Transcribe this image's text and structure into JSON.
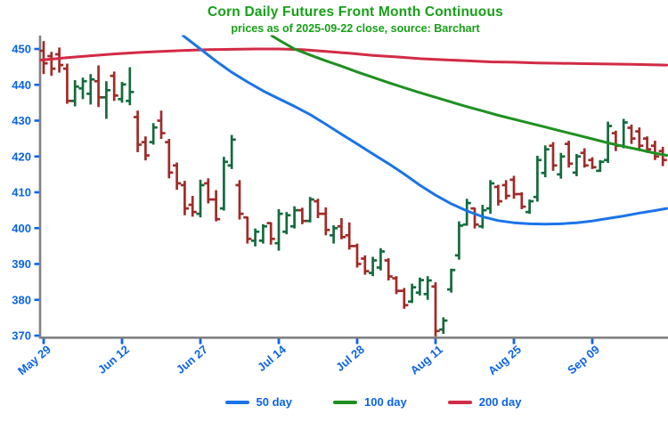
{
  "header": {
    "title": "Corn Daily Futures Front Month Continuous",
    "subtitle": "prices as of 2025-09-22 close, source: Barchart"
  },
  "colors": {
    "title_green": "#17A017",
    "axis_label_blue": "#0B64E8",
    "spine_gray": "#808080",
    "ma50_blue": "#1B74E8",
    "ma100_green": "#1F9020",
    "ma200_red": "#D22B45",
    "bar_up_green": "#146B3E",
    "bar_down_red": "#A02B28"
  },
  "legend": {
    "items": [
      {
        "label": "50 day",
        "color": "#1B74E8"
      },
      {
        "label": "100 day",
        "color": "#1F9020"
      },
      {
        "label": "200 day",
        "color": "#D22B45"
      }
    ]
  },
  "axes": {
    "y_ticks": [
      450,
      440,
      430,
      420,
      410,
      400,
      390,
      380,
      370
    ],
    "x_ticks": [
      {
        "label": "May 29",
        "index": 0
      },
      {
        "label": "Jun 12",
        "index": 10
      },
      {
        "label": "Jun 27",
        "index": 20
      },
      {
        "label": "Jul 14",
        "index": 30
      },
      {
        "label": "Jul 28",
        "index": 40
      },
      {
        "label": "Aug 11",
        "index": 50
      },
      {
        "label": "Aug 25",
        "index": 60
      },
      {
        "label": "Sep 09",
        "index": 70
      }
    ]
  },
  "chart_data": {
    "type": "ohlc-bar+line",
    "title": "Corn Daily Futures Front Month Continuous",
    "subtitle": "prices as of 2025-09-22 close, source: Barchart",
    "xlabel": "",
    "ylabel": "",
    "ylim": [
      368,
      454
    ],
    "grid": false,
    "legend_position": "bottom",
    "x_unit": "trading-day index, 2025-05-29 through 2025-09-22",
    "bars_ohlc": [
      [
        449.5,
        452.2,
        443.0,
        446.0
      ],
      [
        448.0,
        449.2,
        442.5,
        444.5
      ],
      [
        448.5,
        450.4,
        443.4,
        445.5
      ],
      [
        444.5,
        445.9,
        434.7,
        435.5
      ],
      [
        435.5,
        441.3,
        434.0,
        439.5
      ],
      [
        439.0,
        442.0,
        436.0,
        441.0
      ],
      [
        437.5,
        443.0,
        434.5,
        441.5
      ],
      [
        441.0,
        445.4,
        433.8,
        436.5
      ],
      [
        436.5,
        441.0,
        430.5,
        438.5
      ],
      [
        442.5,
        443.7,
        435.5,
        437.0
      ],
      [
        436.0,
        440.8,
        435.0,
        440.1
      ],
      [
        435.5,
        444.9,
        434.3,
        438.0
      ],
      [
        431.0,
        432.8,
        421.2,
        423.3
      ],
      [
        424.0,
        425.6,
        418.9,
        420.3
      ],
      [
        424.0,
        429.3,
        423.3,
        428.1
      ],
      [
        430.0,
        432.8,
        424.9,
        426.5
      ],
      [
        424.0,
        424.9,
        413.9,
        415.5
      ],
      [
        417.5,
        418.3,
        410.7,
        412.5
      ],
      [
        412.0,
        413.2,
        403.6,
        405.5
      ],
      [
        406.5,
        409.0,
        403.2,
        404.5
      ],
      [
        404.0,
        413.5,
        403.0,
        412.0
      ],
      [
        412.5,
        413.9,
        406.9,
        408.0
      ],
      [
        408.0,
        410.6,
        401.9,
        402.5
      ],
      [
        405.5,
        419.9,
        404.9,
        418.5
      ],
      [
        417.5,
        426.0,
        416.5,
        424.7
      ],
      [
        412.0,
        413.4,
        402.4,
        404.0
      ],
      [
        403.0,
        403.2,
        395.7,
        397.0
      ],
      [
        396.5,
        399.9,
        394.9,
        399.0
      ],
      [
        396.5,
        401.1,
        395.7,
        400.5
      ],
      [
        401.4,
        401.6,
        395.4,
        397.0
      ],
      [
        395.8,
        405.3,
        393.7,
        404.0
      ],
      [
        399.0,
        404.5,
        398.3,
        403.6
      ],
      [
        400.5,
        406.1,
        399.9,
        405.0
      ],
      [
        405.0,
        405.7,
        401.1,
        402.0
      ],
      [
        402.0,
        408.7,
        401.6,
        408.0
      ],
      [
        407.5,
        408.2,
        402.8,
        404.0
      ],
      [
        404.0,
        405.8,
        398.0,
        399.5
      ],
      [
        398.0,
        400.8,
        395.7,
        400.0
      ],
      [
        400.5,
        402.8,
        396.9,
        397.5
      ],
      [
        398.0,
        401.6,
        394.0,
        395.0
      ],
      [
        395.0,
        395.7,
        389.0,
        390.0
      ],
      [
        391.5,
        392.4,
        387.0,
        388.0
      ],
      [
        387.5,
        392.0,
        386.6,
        391.0
      ],
      [
        389.0,
        394.4,
        388.2,
        393.5
      ],
      [
        391.0,
        391.6,
        385.4,
        386.5
      ],
      [
        386.0,
        386.6,
        381.6,
        382.5
      ],
      [
        382.5,
        383.3,
        377.5,
        378.5
      ],
      [
        379.5,
        384.5,
        379.1,
        383.5
      ],
      [
        382.0,
        386.2,
        381.2,
        385.5
      ],
      [
        381.6,
        386.6,
        380.0,
        385.4
      ],
      [
        383.7,
        384.9,
        369.8,
        371.3
      ],
      [
        371.7,
        375.1,
        370.5,
        374.2
      ],
      [
        382.9,
        388.7,
        382.0,
        388.3
      ],
      [
        392.4,
        401.9,
        391.2,
        400.7
      ],
      [
        401.0,
        408.2,
        400.7,
        407.0
      ],
      [
        405.5,
        405.7,
        399.9,
        401.0
      ],
      [
        400.5,
        406.5,
        399.9,
        405.0
      ],
      [
        405.5,
        413.4,
        404.0,
        412.5
      ],
      [
        411.5,
        412.1,
        406.3,
        407.5
      ],
      [
        412.0,
        413.4,
        408.0,
        409.0
      ],
      [
        413.5,
        414.6,
        408.2,
        409.5
      ],
      [
        409.5,
        410.0,
        405.3,
        406.0
      ],
      [
        404.5,
        408.0,
        404.0,
        407.5
      ],
      [
        408.7,
        420.2,
        407.4,
        419.0
      ],
      [
        415.4,
        423.1,
        414.2,
        422.0
      ],
      [
        423.0,
        424.0,
        416.0,
        417.5
      ],
      [
        415.0,
        421.0,
        413.8,
        420.0
      ],
      [
        423.5,
        424.4,
        416.9,
        418.0
      ],
      [
        415.5,
        420.7,
        414.5,
        420.0
      ],
      [
        421.0,
        422.3,
        416.9,
        417.5
      ],
      [
        419.0,
        419.8,
        416.5,
        417.0
      ],
      [
        416.0,
        419.0,
        415.7,
        418.5
      ],
      [
        419.0,
        429.7,
        418.2,
        428.5
      ],
      [
        426.5,
        427.2,
        421.5,
        423.0
      ],
      [
        423.0,
        430.5,
        422.3,
        429.5
      ],
      [
        428.0,
        428.9,
        423.5,
        425.0
      ],
      [
        427.0,
        428.1,
        421.5,
        423.0
      ],
      [
        425.0,
        425.6,
        421.0,
        422.0
      ],
      [
        423.0,
        424.4,
        419.0,
        420.0
      ],
      [
        421.5,
        422.7,
        417.3,
        419.0
      ]
    ],
    "series": [
      {
        "name": "50 day",
        "type": "line",
        "color": "#1B74E8",
        "points": [
          [
            17.8,
            453.7
          ],
          [
            20,
            450.0
          ],
          [
            22,
            446.6
          ],
          [
            24,
            443.5
          ],
          [
            26,
            440.8
          ],
          [
            28,
            438.3
          ],
          [
            30,
            436.1
          ],
          [
            32,
            434.0
          ],
          [
            34,
            431.7
          ],
          [
            36,
            429.0
          ],
          [
            38,
            426.2
          ],
          [
            40,
            423.5
          ],
          [
            42,
            420.7
          ],
          [
            44,
            418.0
          ],
          [
            46,
            415.1
          ],
          [
            48,
            412.0
          ],
          [
            50,
            409.2
          ],
          [
            52,
            406.8
          ],
          [
            54,
            404.8
          ],
          [
            56,
            403.2
          ],
          [
            58,
            402.1
          ],
          [
            60,
            401.5
          ],
          [
            62,
            401.2
          ],
          [
            64,
            401.1
          ],
          [
            66,
            401.2
          ],
          [
            68,
            401.5
          ],
          [
            70,
            402.0
          ],
          [
            72,
            402.7
          ],
          [
            74,
            403.4
          ],
          [
            76,
            404.2
          ],
          [
            78,
            404.9
          ],
          [
            79.5,
            405.5
          ]
        ]
      },
      {
        "name": "100 day",
        "type": "line",
        "color": "#1F9020",
        "points": [
          [
            29.1,
            453.7
          ],
          [
            30,
            452.5
          ],
          [
            32,
            450.0
          ],
          [
            34,
            448.3
          ],
          [
            36,
            446.7
          ],
          [
            38,
            445.2
          ],
          [
            40,
            443.6
          ],
          [
            42,
            442.1
          ],
          [
            44,
            440.6
          ],
          [
            46,
            439.2
          ],
          [
            48,
            437.8
          ],
          [
            50,
            436.5
          ],
          [
            52,
            435.2
          ],
          [
            54,
            433.9
          ],
          [
            56,
            432.7
          ],
          [
            58,
            431.5
          ],
          [
            60,
            430.4
          ],
          [
            62,
            429.3
          ],
          [
            64,
            428.2
          ],
          [
            66,
            427.1
          ],
          [
            68,
            426.0
          ],
          [
            70,
            424.9
          ],
          [
            72,
            423.8
          ],
          [
            74,
            422.8
          ],
          [
            76,
            421.9
          ],
          [
            78,
            420.9
          ],
          [
            79.5,
            420.3
          ]
        ]
      },
      {
        "name": "200 day",
        "type": "line",
        "color": "#D22B45",
        "points": [
          [
            -0.34,
            446.9
          ],
          [
            3,
            447.6
          ],
          [
            6,
            448.1
          ],
          [
            9,
            448.6
          ],
          [
            12,
            449.0
          ],
          [
            15,
            449.3
          ],
          [
            18,
            449.6
          ],
          [
            21,
            449.8
          ],
          [
            24,
            449.9
          ],
          [
            27,
            450.0
          ],
          [
            30,
            450.0
          ],
          [
            33,
            449.8
          ],
          [
            36,
            449.3
          ],
          [
            39,
            448.8
          ],
          [
            42,
            448.2
          ],
          [
            45,
            447.8
          ],
          [
            48,
            447.3
          ],
          [
            51,
            447.0
          ],
          [
            54,
            446.7
          ],
          [
            57,
            446.4
          ],
          [
            60,
            446.3
          ],
          [
            63,
            446.1
          ],
          [
            66,
            446.0
          ],
          [
            69,
            445.9
          ],
          [
            72,
            445.8
          ],
          [
            75,
            445.7
          ],
          [
            79.5,
            445.5
          ]
        ]
      }
    ]
  }
}
